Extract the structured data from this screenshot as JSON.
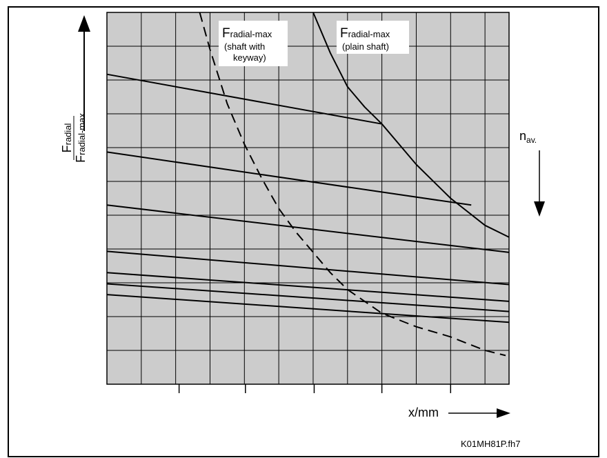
{
  "chart_data": {
    "type": "line",
    "xlabel": "x/mm",
    "ylabel": {
      "main": "F",
      "sub1": "radial",
      "sub2": "radial-max"
    },
    "ylabel_line2_prefix": "F",
    "nav_label": {
      "main": "n",
      "sub": "av."
    },
    "figure_id": "K01MH81P.fh7",
    "grid": true,
    "colors": {
      "grid_fill": "#cccccc",
      "line": "#000000",
      "frame": "#000000"
    },
    "annotations": [
      {
        "main": "F",
        "sub": "radial-max",
        "line2": "(shaft with",
        "line3": "keyway)"
      },
      {
        "main": "F",
        "sub": "radial-max",
        "line2": "(plain shaft)"
      }
    ],
    "series": [
      {
        "style": "solid",
        "points": [
          [
            0,
            0.917
          ],
          [
            8,
            0.77
          ]
        ]
      },
      {
        "style": "solid",
        "points": [
          [
            0,
            0.687
          ],
          [
            10.6,
            0.53
          ]
        ]
      },
      {
        "style": "solid",
        "points": [
          [
            0,
            0.53
          ],
          [
            11.7,
            0.39
          ]
        ]
      },
      {
        "style": "solid",
        "points": [
          [
            0,
            0.393
          ],
          [
            11.7,
            0.295
          ]
        ]
      },
      {
        "style": "solid",
        "points": [
          [
            0,
            0.33
          ],
          [
            11.7,
            0.245
          ]
        ]
      },
      {
        "style": "solid",
        "points": [
          [
            0,
            0.297
          ],
          [
            11.7,
            0.215
          ]
        ]
      },
      {
        "style": "solid",
        "points": [
          [
            0,
            0.265
          ],
          [
            11.7,
            0.183
          ]
        ]
      },
      {
        "style": "solid",
        "points": [
          [
            6,
            1.1
          ],
          [
            6.5,
            0.98
          ],
          [
            7,
            0.88
          ],
          [
            7.5,
            0.82
          ],
          [
            8,
            0.77
          ],
          [
            9,
            0.65
          ],
          [
            10,
            0.55
          ],
          [
            11,
            0.47
          ],
          [
            11.7,
            0.435
          ]
        ]
      },
      {
        "style": "dashed",
        "points": [
          [
            2.7,
            1.1
          ],
          [
            3,
            0.99
          ],
          [
            3.5,
            0.83
          ],
          [
            4,
            0.71
          ],
          [
            4.5,
            0.61
          ],
          [
            5,
            0.52
          ],
          [
            5.5,
            0.45
          ],
          [
            6,
            0.39
          ],
          [
            6.5,
            0.33
          ],
          [
            7,
            0.28
          ],
          [
            8,
            0.21
          ],
          [
            9,
            0.17
          ],
          [
            10,
            0.14
          ],
          [
            11,
            0.1
          ],
          [
            11.6,
            0.085
          ]
        ]
      }
    ],
    "x_range": [
      0,
      11.7
    ],
    "y_range": [
      0,
      1.1
    ],
    "x_ticks": [
      2.1,
      4.03,
      6.03,
      8.0,
      10.0
    ],
    "legend": "none"
  }
}
